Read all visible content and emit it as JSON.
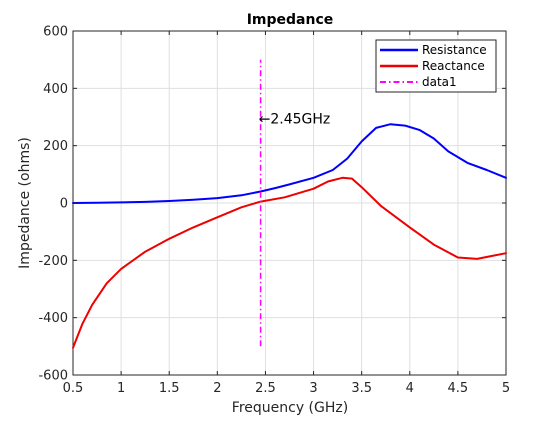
{
  "chart_data": {
    "type": "line",
    "title": "Impedance",
    "xlabel": "Frequency (GHz)",
    "ylabel": "Impedance (ohms)",
    "xlim": [
      0.5,
      5
    ],
    "ylim": [
      -600,
      600
    ],
    "xticks": [
      "0.5",
      "1",
      "1.5",
      "2",
      "2.5",
      "3",
      "3.5",
      "4",
      "4.5",
      "5"
    ],
    "yticks": [
      "-600",
      "-400",
      "-200",
      "0",
      "200",
      "400",
      "600"
    ],
    "grid": true,
    "legend_position": "top-right",
    "series": [
      {
        "name": "Resistance",
        "color": "#0000ff",
        "style": "solid",
        "x": [
          0.5,
          0.75,
          1.0,
          1.25,
          1.5,
          1.75,
          2.0,
          2.25,
          2.45,
          2.6,
          2.75,
          3.0,
          3.2,
          3.35,
          3.5,
          3.65,
          3.8,
          3.95,
          4.1,
          4.25,
          4.4,
          4.6,
          4.8,
          5.0
        ],
        "y": [
          0,
          1,
          2,
          4,
          7,
          11,
          17,
          27,
          40,
          52,
          65,
          88,
          115,
          155,
          215,
          262,
          275,
          270,
          255,
          225,
          180,
          140,
          115,
          88
        ]
      },
      {
        "name": "Reactance",
        "color": "#ee0000",
        "style": "solid",
        "x": [
          0.5,
          0.6,
          0.7,
          0.85,
          1.0,
          1.25,
          1.5,
          1.75,
          2.0,
          2.25,
          2.45,
          2.7,
          3.0,
          3.15,
          3.3,
          3.4,
          3.5,
          3.7,
          4.0,
          4.25,
          4.5,
          4.7,
          4.85,
          5.0
        ],
        "y": [
          -505,
          -420,
          -355,
          -280,
          -230,
          -170,
          -125,
          -85,
          -50,
          -15,
          5,
          20,
          50,
          75,
          88,
          85,
          55,
          -10,
          -85,
          -145,
          -190,
          -195,
          -185,
          -175
        ]
      },
      {
        "name": "data1",
        "color": "#ff00ff",
        "style": "dash-dot",
        "x": [
          2.45,
          2.45
        ],
        "y": [
          -500,
          500
        ]
      }
    ],
    "annotations": [
      {
        "text": "←2.45GHz",
        "x": 2.45,
        "y": 295
      }
    ]
  }
}
